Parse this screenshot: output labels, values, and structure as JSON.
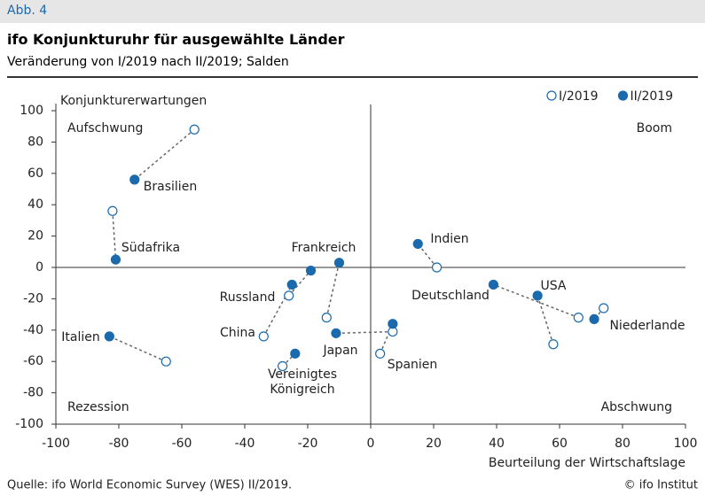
{
  "chart_data": {
    "type": "scatter",
    "figure": "Abb. 4",
    "title": "ifo Konjunkturuhr für ausgewählte Länder",
    "subtitle": "Veränderung von I/2019 nach II/2019; Salden",
    "y_label": "Konjunkturerwartungen",
    "x_label": "Beurteilung der Wirtschaftslage",
    "quadrants": [
      "Aufschwung",
      "Boom",
      "Rezession",
      "Abschwung"
    ],
    "source": "Quelle: ifo World Economic Survey (WES) II/2019.",
    "copyright": "© ifo Institut",
    "labels": [
      "Brasilien",
      "Südafrika",
      "Frankreich",
      "Russland",
      "China",
      "Vereinigtes Königreich",
      "Italien",
      "Japan",
      "Spanien",
      "Indien",
      "Deutschland",
      "USA",
      "Niederlande"
    ],
    "series": [
      {
        "name": "I/2019",
        "color": "#1a6aad",
        "filled": false,
        "x": [
          -56,
          -82,
          -14,
          -26,
          -34,
          -28,
          -65,
          7,
          3,
          21,
          66,
          58,
          74
        ],
        "values": [
          88,
          36,
          -32,
          -18,
          -44,
          -63,
          -60,
          -41,
          -55,
          0,
          -32,
          -49,
          -26
        ]
      },
      {
        "name": "II/2019",
        "color": "#1a6aad",
        "filled": true,
        "x": [
          -75,
          -81,
          -10,
          -19,
          -25,
          -24,
          -83,
          -11,
          7,
          15,
          39,
          53,
          71
        ],
        "values": [
          56,
          5,
          3,
          -2,
          -11,
          -55,
          -44,
          -42,
          -36,
          15,
          -11,
          -18,
          -33
        ]
      }
    ],
    "xlim": [
      -100,
      100
    ],
    "xticks": [
      -100,
      -80,
      -60,
      -40,
      -20,
      0,
      20,
      40,
      60,
      80,
      100
    ],
    "ylim": [
      -100,
      100
    ],
    "yticks": [
      -100,
      -80,
      -60,
      -40,
      -20,
      0,
      20,
      40,
      60,
      80,
      100
    ],
    "legend": "top-right"
  }
}
